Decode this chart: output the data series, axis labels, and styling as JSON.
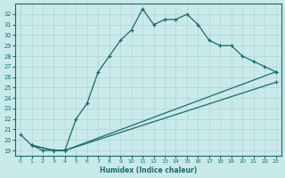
{
  "xlabel": "Humidex (Indice chaleur)",
  "bg_color": "#c8eaea",
  "grid_color": "#b8d8d8",
  "line_color": "#1a6b6b",
  "xlim": [
    -0.5,
    23.5
  ],
  "ylim": [
    18.5,
    33.0
  ],
  "xticks": [
    0,
    1,
    2,
    3,
    4,
    5,
    6,
    7,
    8,
    9,
    10,
    11,
    12,
    13,
    14,
    15,
    16,
    17,
    18,
    19,
    20,
    21,
    22,
    23
  ],
  "yticks": [
    19,
    20,
    21,
    22,
    23,
    24,
    25,
    26,
    27,
    28,
    29,
    30,
    31,
    32
  ],
  "line1_x": [
    0,
    1,
    2,
    3,
    4,
    5,
    6,
    7,
    8,
    9,
    10,
    11,
    12,
    13,
    14,
    15,
    16,
    17,
    18,
    19,
    20,
    21,
    22,
    23
  ],
  "line1_y": [
    20.5,
    19.5,
    19.0,
    19.0,
    19.0,
    22.0,
    23.5,
    26.5,
    28.0,
    29.5,
    30.5,
    32.5,
    31.0,
    31.5,
    31.5,
    32.0,
    31.0,
    29.5,
    29.0,
    29.0,
    28.0,
    27.5,
    27.0,
    26.5
  ],
  "line2_x": [
    1,
    3,
    4,
    23
  ],
  "line2_y": [
    19.5,
    19.0,
    19.0,
    26.5
  ],
  "line3_x": [
    1,
    3,
    4,
    23
  ],
  "line3_y": [
    19.5,
    19.0,
    19.0,
    25.5
  ]
}
